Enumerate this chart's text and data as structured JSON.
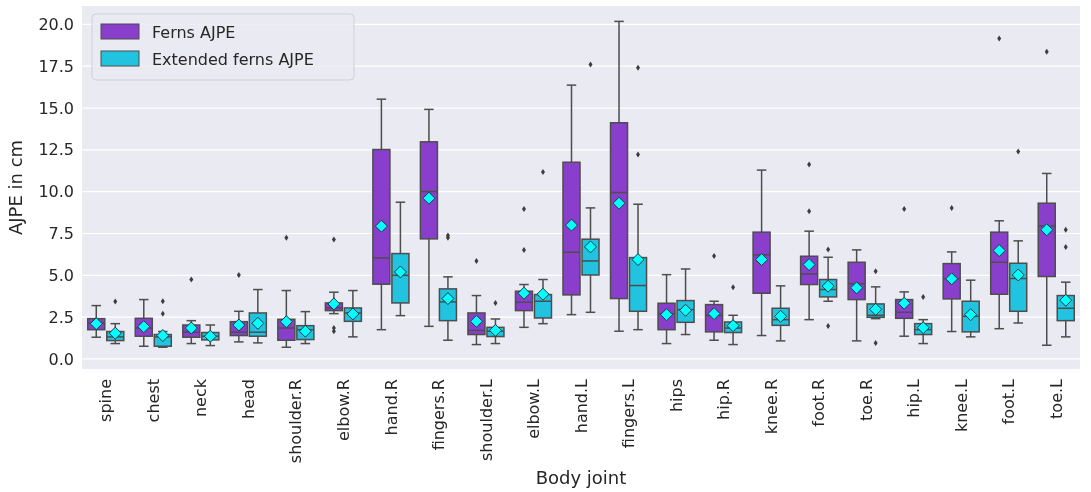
{
  "chart_data": {
    "type": "box",
    "xlabel": "Body joint",
    "ylabel": "AJPE in cm",
    "categories": [
      "spine",
      "chest",
      "neck",
      "head",
      "shoulder.R",
      "elbow.R",
      "hand.R",
      "fingers.R",
      "shoulder.L",
      "elbow.L",
      "hand.L",
      "fingers.L",
      "hips",
      "hip.R",
      "knee.R",
      "foot.R",
      "toe.R",
      "hip.L",
      "knee.L",
      "foot.L",
      "toe.L"
    ],
    "ylim": [
      -0.6,
      21.1
    ],
    "yticks": [
      {
        "value": 0,
        "label": "0.0"
      },
      {
        "value": 2.5,
        "label": "2.5"
      },
      {
        "value": 5,
        "label": "5.0"
      },
      {
        "value": 7.5,
        "label": "7.5"
      },
      {
        "value": 10,
        "label": "10.0"
      },
      {
        "value": 12.5,
        "label": "12.5"
      },
      {
        "value": 15,
        "label": "15.0"
      },
      {
        "value": 17.5,
        "label": "17.5"
      },
      {
        "value": 20,
        "label": "20.0"
      }
    ],
    "grid": "y",
    "legend": "top left",
    "series": [
      {
        "name": "Ferns AJPE",
        "color": "#8a3fcc",
        "boxes": [
          {
            "low": 1.3,
            "q1": 1.75,
            "median": 2.15,
            "q3": 2.41,
            "high": 3.19,
            "mean": 2.11
          },
          {
            "low": 0.76,
            "q1": 1.36,
            "median": 1.85,
            "q3": 2.43,
            "high": 3.55,
            "mean": 1.93
          },
          {
            "low": 0.92,
            "q1": 1.3,
            "median": 1.6,
            "q3": 2.03,
            "high": 2.29,
            "mean": 1.85,
            "outliers": [
              4.75
            ]
          },
          {
            "low": 1.02,
            "q1": 1.4,
            "median": 1.6,
            "q3": 2.23,
            "high": 2.85,
            "mean": 2.03,
            "outliers": [
              5.02
            ]
          },
          {
            "low": 0.7,
            "q1": 1.12,
            "median": 1.85,
            "q3": 2.37,
            "high": 4.09,
            "mean": 2.23,
            "outliers": [
              7.24
            ]
          },
          {
            "low": 2.71,
            "q1": 2.89,
            "median": 3.05,
            "q3": 3.35,
            "high": 3.99,
            "mean": 3.29,
            "outliers": [
              7.14,
              1.85,
              1.66
            ]
          },
          {
            "low": 1.75,
            "q1": 4.47,
            "median": 6.04,
            "q3": 12.52,
            "high": 15.53,
            "mean": 7.94
          },
          {
            "low": 1.95,
            "q1": 7.18,
            "median": 10.01,
            "q3": 12.98,
            "high": 14.92,
            "mean": 9.61
          },
          {
            "low": 0.86,
            "q1": 1.46,
            "median": 1.71,
            "q3": 2.75,
            "high": 3.79,
            "mean": 2.25,
            "outliers": [
              5.86
            ]
          },
          {
            "low": 1.89,
            "q1": 2.89,
            "median": 3.39,
            "q3": 4.05,
            "high": 4.45,
            "mean": 3.93,
            "outliers": [
              8.97,
              6.52
            ]
          },
          {
            "low": 2.65,
            "q1": 3.83,
            "median": 6.38,
            "q3": 11.76,
            "high": 16.37,
            "mean": 8.0
          },
          {
            "low": 1.66,
            "q1": 3.61,
            "median": 9.95,
            "q3": 14.12,
            "high": 20.18,
            "mean": 9.31
          },
          {
            "low": 0.92,
            "q1": 1.75,
            "median": 2.7,
            "q3": 3.33,
            "high": 5.04,
            "mean": 2.65
          },
          {
            "low": 1.12,
            "q1": 1.62,
            "median": 2.6,
            "q3": 3.25,
            "high": 3.45,
            "mean": 2.71,
            "outliers": [
              6.16
            ]
          },
          {
            "low": 1.4,
            "q1": 3.93,
            "median": 6.22,
            "q3": 7.58,
            "high": 11.29,
            "mean": 5.94
          },
          {
            "low": 2.35,
            "q1": 4.45,
            "median": 5.08,
            "q3": 6.14,
            "high": 7.64,
            "mean": 5.64,
            "outliers": [
              11.63,
              8.83
            ]
          },
          {
            "low": 1.08,
            "q1": 3.55,
            "median": 4.5,
            "q3": 5.78,
            "high": 6.52,
            "mean": 4.25
          },
          {
            "low": 1.36,
            "q1": 2.43,
            "median": 2.79,
            "q3": 3.55,
            "high": 4.01,
            "mean": 3.33,
            "outliers": [
              8.97
            ]
          },
          {
            "low": 1.64,
            "q1": 3.59,
            "median": 4.8,
            "q3": 5.7,
            "high": 6.4,
            "mean": 4.79,
            "outliers": [
              9.03
            ]
          },
          {
            "low": 1.81,
            "q1": 3.87,
            "median": 5.78,
            "q3": 7.58,
            "high": 8.26,
            "mean": 6.48,
            "outliers": [
              19.16
            ]
          },
          {
            "low": 0.82,
            "q1": 4.93,
            "median": 7.94,
            "q3": 9.31,
            "high": 11.09,
            "mean": 7.72,
            "outliers": [
              18.36
            ]
          }
        ]
      },
      {
        "name": "Extended ferns AJPE",
        "color": "#22c3e0",
        "boxes": [
          {
            "low": 0.92,
            "q1": 1.1,
            "median": 1.32,
            "q3": 1.64,
            "high": 2.11,
            "mean": 1.54,
            "outliers": [
              3.43
            ]
          },
          {
            "low": 0.7,
            "q1": 0.76,
            "median": 1.32,
            "q3": 1.46,
            "high": 1.64,
            "mean": 1.4,
            "outliers": [
              3.45,
              2.71
            ]
          },
          {
            "low": 0.8,
            "q1": 1.14,
            "median": 1.36,
            "q3": 1.58,
            "high": 2.03,
            "mean": 1.36
          },
          {
            "low": 0.96,
            "q1": 1.36,
            "median": 1.6,
            "q3": 2.75,
            "high": 4.15,
            "mean": 2.13
          },
          {
            "low": 0.92,
            "q1": 1.16,
            "median": 1.75,
            "q3": 1.99,
            "high": 2.83,
            "mean": 1.66
          },
          {
            "low": 1.32,
            "q1": 2.25,
            "median": 2.75,
            "q3": 3.05,
            "high": 4.09,
            "mean": 2.69
          },
          {
            "low": 2.59,
            "q1": 3.35,
            "median": 5.0,
            "q3": 6.3,
            "high": 9.37,
            "mean": 5.2
          },
          {
            "low": 1.12,
            "q1": 2.29,
            "median": 3.41,
            "q3": 4.19,
            "high": 4.91,
            "mean": 3.61,
            "outliers": [
              7.38,
              7.24
            ]
          },
          {
            "low": 0.92,
            "q1": 1.34,
            "median": 1.66,
            "q3": 1.89,
            "high": 2.39,
            "mean": 1.71,
            "outliers": [
              3.35
            ]
          },
          {
            "low": 2.11,
            "q1": 2.45,
            "median": 3.45,
            "q3": 3.85,
            "high": 4.75,
            "mean": 3.87,
            "outliers": [
              11.17
            ]
          },
          {
            "low": 2.79,
            "q1": 5.02,
            "median": 5.86,
            "q3": 7.16,
            "high": 9.03,
            "mean": 6.7,
            "outliers": [
              17.6
            ]
          },
          {
            "low": 1.75,
            "q1": 2.85,
            "median": 4.39,
            "q3": 6.06,
            "high": 9.25,
            "mean": 5.94,
            "outliers": [
              17.41,
              12.22
            ]
          },
          {
            "low": 1.46,
            "q1": 2.19,
            "median": 2.95,
            "q3": 3.49,
            "high": 5.38,
            "mean": 2.91
          },
          {
            "low": 0.86,
            "q1": 1.58,
            "median": 1.85,
            "q3": 2.21,
            "high": 2.61,
            "mean": 1.99,
            "outliers": [
              4.29
            ]
          },
          {
            "low": 1.08,
            "q1": 2.01,
            "median": 2.35,
            "q3": 3.03,
            "high": 4.37,
            "mean": 2.55
          },
          {
            "low": 3.45,
            "q1": 3.71,
            "median": 4.15,
            "q3": 4.75,
            "high": 6.08,
            "mean": 4.35,
            "outliers": [
              6.54,
              1.97
            ]
          },
          {
            "low": 2.41,
            "q1": 2.49,
            "median": 2.61,
            "q3": 3.29,
            "high": 4.31,
            "mean": 2.97,
            "outliers": [
              5.24,
              0.96
            ]
          },
          {
            "low": 0.92,
            "q1": 1.46,
            "median": 1.75,
            "q3": 2.11,
            "high": 2.35,
            "mean": 1.87,
            "outliers": [
              3.71
            ]
          },
          {
            "low": 1.32,
            "q1": 1.62,
            "median": 2.55,
            "q3": 3.45,
            "high": 4.71,
            "mean": 2.65
          },
          {
            "low": 2.15,
            "q1": 2.85,
            "median": 4.81,
            "q3": 5.72,
            "high": 7.06,
            "mean": 5.02,
            "outliers": [
              12.4
            ]
          },
          {
            "low": 1.32,
            "q1": 2.29,
            "median": 3.03,
            "q3": 3.79,
            "high": 4.59,
            "mean": 3.51,
            "outliers": [
              7.72,
              6.7
            ]
          }
        ]
      }
    ]
  }
}
